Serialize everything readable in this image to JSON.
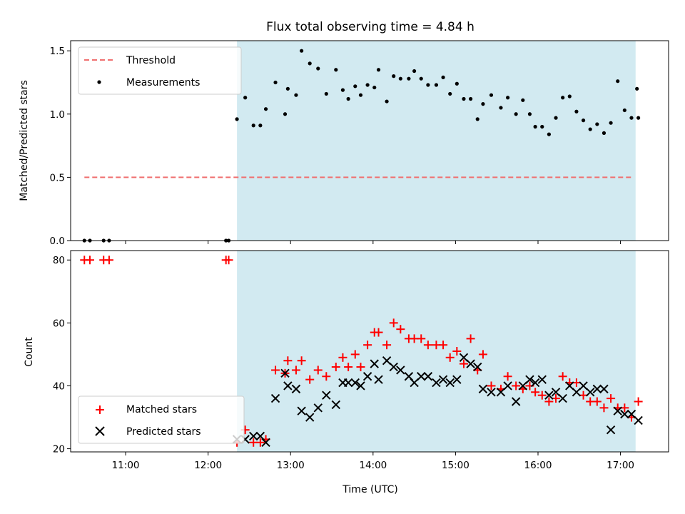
{
  "chart_data": {
    "title": "Flux total observing time = 4.84 h",
    "xlabel": "Time (UTC)",
    "x_unit": "hours UTC",
    "xlim": [
      "10:20",
      "17:35"
    ],
    "xticks": [
      "11:00",
      "12:00",
      "13:00",
      "14:00",
      "15:00",
      "16:00",
      "17:00"
    ],
    "observing_window": [
      "12:21",
      "17:11"
    ],
    "window_color": "#add8e6",
    "panels": [
      {
        "type": "scatter",
        "ylabel": "Matched/Predicted stars",
        "ylim": [
          0,
          1.58
        ],
        "yticks": [
          "0.0",
          "0.5",
          "1.0",
          "1.5"
        ],
        "legend_position": "top-left",
        "threshold": {
          "name": "Threshold",
          "value": 0.5,
          "x_range": [
            "10:30",
            "17:08"
          ],
          "color": "#f07070"
        },
        "series": [
          {
            "name": "Measurements",
            "color": "#000000",
            "x": [
              "10:30",
              "10:34",
              "10:44",
              "10:48",
              "12:13",
              "12:15",
              "12:21",
              "12:27",
              "12:33",
              "12:38",
              "12:42",
              "12:49",
              "12:56",
              "12:58",
              "13:04",
              "13:08",
              "13:14",
              "13:20",
              "13:26",
              "13:33",
              "13:38",
              "13:42",
              "13:47",
              "13:51",
              "13:56",
              "14:01",
              "14:04",
              "14:10",
              "14:15",
              "14:20",
              "14:26",
              "14:30",
              "14:35",
              "14:40",
              "14:46",
              "14:51",
              "14:56",
              "15:01",
              "15:06",
              "15:11",
              "15:16",
              "15:20",
              "15:26",
              "15:33",
              "15:38",
              "15:44",
              "15:49",
              "15:54",
              "15:58",
              "16:03",
              "16:08",
              "16:13",
              "16:18",
              "16:23",
              "16:28",
              "16:33",
              "16:38",
              "16:43",
              "16:48",
              "16:53",
              "16:58",
              "17:03",
              "17:08",
              "17:13"
            ],
            "y": [
              0,
              0,
              0,
              0,
              0,
              0,
              0.96,
              1.13,
              0.91,
              0.91,
              1.04,
              1.25,
              1.0,
              1.2,
              1.15,
              1.5,
              1.4,
              1.36,
              1.16,
              1.35,
              1.19,
              1.12,
              1.22,
              1.15,
              1.23,
              1.21,
              1.35,
              1.1,
              1.3,
              1.28,
              1.28,
              1.34,
              1.28,
              1.23,
              1.23,
              1.29,
              1.16,
              1.24,
              1.12,
              1.12,
              0.96,
              1.08,
              1.15,
              1.05,
              1.13,
              1.0,
              1.11,
              1.0,
              0.9,
              0.9,
              0.84,
              0.97,
              1.13,
              1.14,
              1.02,
              0.95,
              0.88,
              0.92,
              0.85,
              0.93,
              1.26,
              1.03,
              0.97,
              0.97
            ]
          }
        ],
        "extra_point": {
          "x": "17:12",
          "y": 1.2
        }
      },
      {
        "type": "scatter",
        "ylabel": "Count",
        "ylim": [
          19,
          83
        ],
        "yticks": [
          "20",
          "40",
          "60",
          "80"
        ],
        "legend_position": "bottom-left",
        "series": [
          {
            "name": "Matched stars",
            "marker": "+",
            "color": "#ff0000",
            "x": [
              "10:30",
              "10:34",
              "10:44",
              "10:48",
              "12:13",
              "12:15",
              "12:21",
              "12:27",
              "12:33",
              "12:38",
              "12:42",
              "12:49",
              "12:56",
              "12:58",
              "13:04",
              "13:08",
              "13:14",
              "13:20",
              "13:26",
              "13:33",
              "13:38",
              "13:42",
              "13:47",
              "13:51",
              "13:56",
              "14:01",
              "14:04",
              "14:10",
              "14:15",
              "14:20",
              "14:26",
              "14:30",
              "14:35",
              "14:40",
              "14:46",
              "14:51",
              "14:56",
              "15:01",
              "15:06",
              "15:11",
              "15:16",
              "15:20",
              "15:26",
              "15:33",
              "15:38",
              "15:44",
              "15:49",
              "15:54",
              "15:58",
              "16:03",
              "16:08",
              "16:13",
              "16:18",
              "16:23",
              "16:28",
              "16:33",
              "16:38",
              "16:43",
              "16:48",
              "16:53",
              "16:58",
              "17:03",
              "17:08",
              "17:13"
            ],
            "y": [
              80,
              80,
              80,
              80,
              80,
              80,
              22,
              26,
              22,
              22,
              23,
              45,
              44,
              48,
              45,
              48,
              42,
              45,
              43,
              46,
              49,
              46,
              50,
              46,
              53,
              57,
              57,
              53,
              60,
              58,
              55,
              55,
              55,
              53,
              53,
              53,
              49,
              51,
              47,
              55,
              45,
              50,
              40,
              39,
              43,
              40,
              39,
              40,
              38,
              37,
              35,
              36,
              43,
              41,
              41,
              37,
              35,
              35,
              33,
              36,
              33,
              33,
              30,
              35
            ]
          },
          {
            "name": "Predicted stars",
            "marker": "x",
            "color": "#000000",
            "x": [
              "12:21",
              "12:27",
              "12:33",
              "12:38",
              "12:42",
              "12:49",
              "12:56",
              "12:58",
              "13:04",
              "13:08",
              "13:14",
              "13:20",
              "13:26",
              "13:33",
              "13:38",
              "13:42",
              "13:47",
              "13:51",
              "13:56",
              "14:01",
              "14:04",
              "14:10",
              "14:15",
              "14:20",
              "14:26",
              "14:30",
              "14:35",
              "14:40",
              "14:46",
              "14:51",
              "14:56",
              "15:01",
              "15:06",
              "15:11",
              "15:16",
              "15:20",
              "15:26",
              "15:33",
              "15:38",
              "15:44",
              "15:49",
              "15:54",
              "15:58",
              "16:03",
              "16:08",
              "16:13",
              "16:18",
              "16:23",
              "16:28",
              "16:33",
              "16:38",
              "16:43",
              "16:48",
              "16:53",
              "16:58",
              "17:03",
              "17:08",
              "17:13"
            ],
            "y": [
              23,
              23,
              24,
              24,
              22,
              36,
              44,
              40,
              39,
              32,
              30,
              33,
              37,
              34,
              41,
              41,
              41,
              40,
              43,
              47,
              42,
              48,
              46,
              45,
              43,
              41,
              43,
              43,
              41,
              42,
              41,
              42,
              49,
              47,
              46,
              39,
              38,
              38,
              40,
              35,
              40,
              42,
              41,
              42,
              37,
              38,
              36,
              40,
              38,
              40,
              38,
              39,
              39,
              26,
              32,
              31,
              31,
              29
            ]
          }
        ]
      }
    ]
  }
}
